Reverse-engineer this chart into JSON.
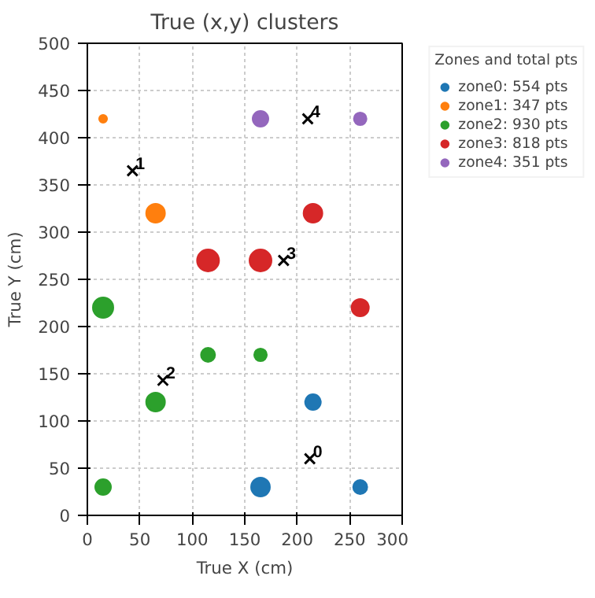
{
  "chart_data": {
    "type": "bubble",
    "title": "True (x,y) clusters",
    "xlabel": "True X (cm)",
    "ylabel": "True Y (cm)",
    "legend_title": "Zones and total pts",
    "xlim": [
      0,
      300
    ],
    "xticks": [
      0,
      50,
      100,
      150,
      200,
      250,
      300
    ],
    "ylim": [
      0,
      500
    ],
    "yticks": [
      0,
      50,
      100,
      150,
      200,
      250,
      300,
      350,
      400,
      450,
      500
    ],
    "grid": true,
    "legend": "top right",
    "marker": "circle",
    "series": [
      {
        "name": "zone0: 554 pts",
        "color": "#1f77b4",
        "x": [
          165,
          215,
          260
        ],
        "values": [
          30,
          120,
          30
        ],
        "sizes": [
          0.73,
          0.51,
          0.41
        ]
      },
      {
        "name": "zone1: 347 pts",
        "color": "#ff7f0e",
        "x": [
          15,
          65
        ],
        "values": [
          420,
          320
        ],
        "sizes": [
          0.13,
          0.73
        ]
      },
      {
        "name": "zone2: 930 pts",
        "color": "#2ca02c",
        "x": [
          15,
          115,
          165,
          65,
          15
        ],
        "values": [
          220,
          170,
          170,
          120,
          30
        ],
        "sizes": [
          0.86,
          0.41,
          0.33,
          0.73,
          0.51
        ]
      },
      {
        "name": "zone3: 818 pts",
        "color": "#d62728",
        "x": [
          115,
          165,
          215,
          260
        ],
        "values": [
          270,
          270,
          320,
          220
        ],
        "sizes": [
          1,
          1,
          0.73,
          0.62
        ]
      },
      {
        "name": "zone4: 351 pts",
        "color": "#9467bd",
        "x": [
          165,
          260
        ],
        "values": [
          420,
          420
        ],
        "sizes": [
          0.51,
          0.33
        ]
      },
      {
        "type": "scatter",
        "marker": "cross",
        "color": "#000000",
        "x": [
          212,
          43,
          72,
          187,
          210
        ],
        "values": [
          60,
          365,
          143,
          270,
          420
        ]
      }
    ],
    "annotations": [
      {
        "text": "0",
        "x": 212,
        "y": 60
      },
      {
        "text": "1",
        "x": 43,
        "y": 365
      },
      {
        "text": "2",
        "x": 72,
        "y": 143
      },
      {
        "text": "3",
        "x": 187,
        "y": 270
      },
      {
        "text": "4",
        "x": 210,
        "y": 420
      }
    ]
  }
}
